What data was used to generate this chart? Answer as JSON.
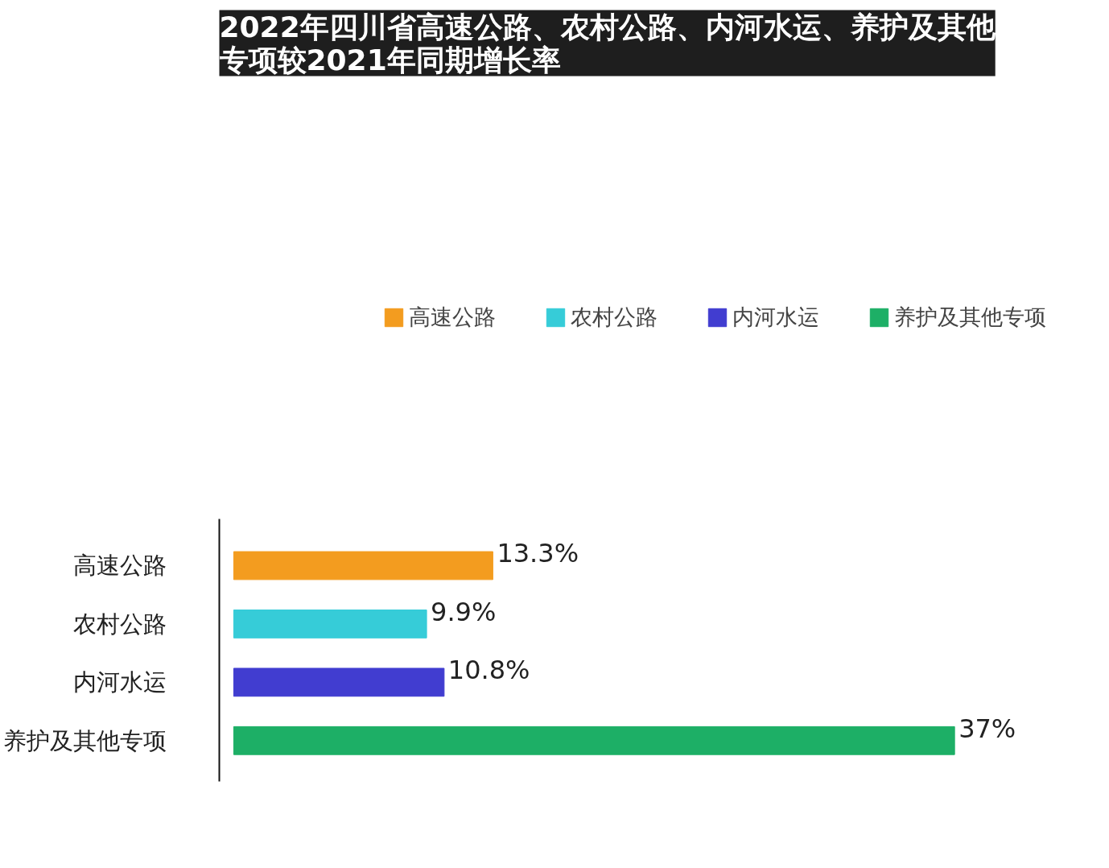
{
  "chart_data": {
    "type": "bar",
    "orientation": "horizontal",
    "title": "2022年四川省高速公路、农村公路、内河水运、养护及其他专项较2021年同期增长率",
    "categories": [
      "高速公路",
      "农村公路",
      "内河水运",
      "养护及其他专项"
    ],
    "series": [
      {
        "name": "高速公路",
        "color": "#f39c1f",
        "values": [
          13.3,
          null,
          null,
          null
        ],
        "value_labels": [
          "13.3%",
          null,
          null,
          null
        ]
      },
      {
        "name": "农村公路",
        "color": "#36ccd8",
        "values": [
          null,
          9.9,
          null,
          null
        ],
        "value_labels": [
          null,
          "9.9%",
          null,
          null
        ]
      },
      {
        "name": "内河水运",
        "color": "#413dd0",
        "values": [
          null,
          null,
          10.8,
          null
        ],
        "value_labels": [
          null,
          null,
          "10.8%",
          null
        ]
      },
      {
        "name": "养护及其他专项",
        "color": "#1daf66",
        "values": [
          null,
          null,
          null,
          37
        ],
        "value_labels": [
          null,
          null,
          null,
          "37%"
        ]
      }
    ],
    "legend": "top",
    "grid": false,
    "tick_labels": "y"
  }
}
